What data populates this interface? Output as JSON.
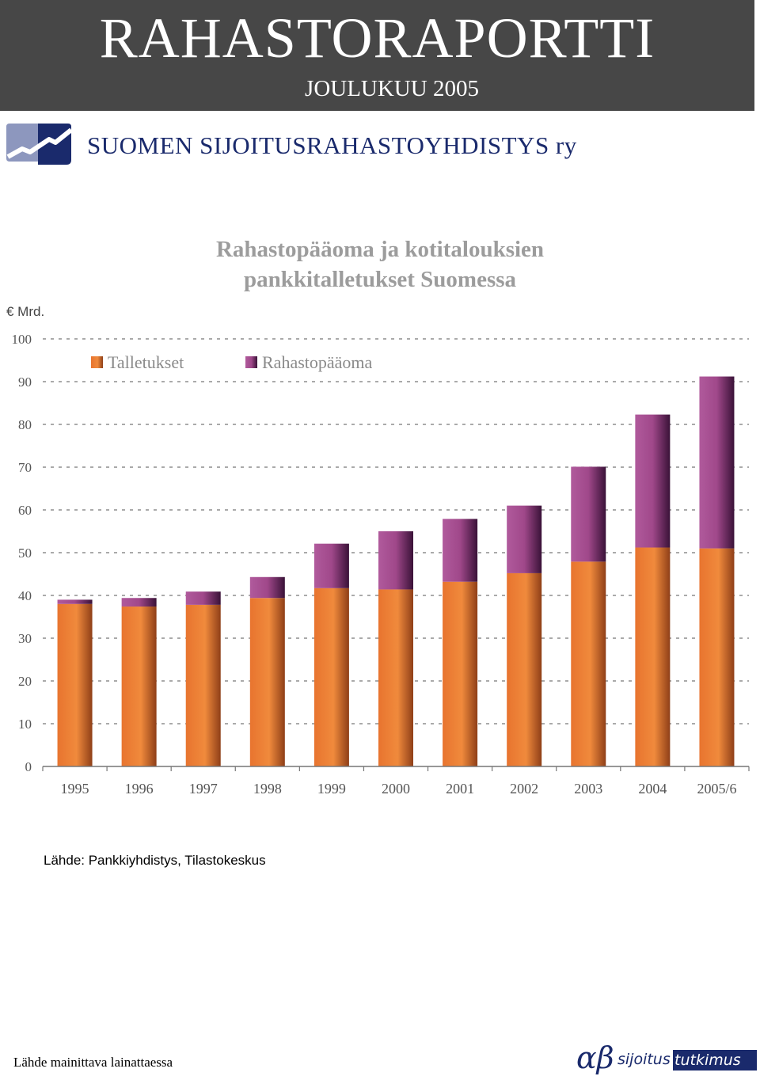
{
  "header": {
    "title": "RAHASTORAPORTTI",
    "subtitle": "JOULUKUU  2005"
  },
  "organization": "SUOMEN  SIJOITUSRAHASTOYHDISTYS ry",
  "source_note": "Lähde: Pankkiyhdistys, Tilastokeskus",
  "footer": {
    "note": "Lähde mainittava lainattaessa",
    "brand_symbol": "αβ",
    "brand_word1": "sijoitus",
    "brand_word2": "tutkimus"
  },
  "colors": {
    "header_bg": "#474747",
    "brand_navy": "#1a2a6c",
    "talletukset": "#e8742f",
    "rahastopaaoma": "#a0488a",
    "grid": "#777777"
  },
  "chart_data": {
    "type": "bar",
    "stacked": true,
    "title": "Rahastopääoma ja kotitalouksien pankkitalletukset Suomessa",
    "ylabel": "€ Mrd.",
    "ylim": [
      0,
      100
    ],
    "yticks": [
      0,
      10,
      20,
      30,
      40,
      50,
      60,
      70,
      80,
      90,
      100
    ],
    "grid": true,
    "legend_position": "top-left",
    "categories": [
      "1995",
      "1996",
      "1997",
      "1998",
      "1999",
      "2000",
      "2001",
      "2002",
      "2003",
      "2004",
      "2005/6"
    ],
    "series": [
      {
        "name": "Talletukset",
        "values": [
          38,
          37.4,
          37.8,
          39.4,
          41.7,
          41.4,
          43.2,
          45.2,
          47.9,
          51.2,
          51
        ]
      },
      {
        "name": "Rahastopääoma",
        "values": [
          1,
          2,
          3.1,
          4.9,
          10.4,
          13.6,
          14.7,
          15.8,
          22.2,
          31.1,
          40.2
        ]
      }
    ]
  }
}
